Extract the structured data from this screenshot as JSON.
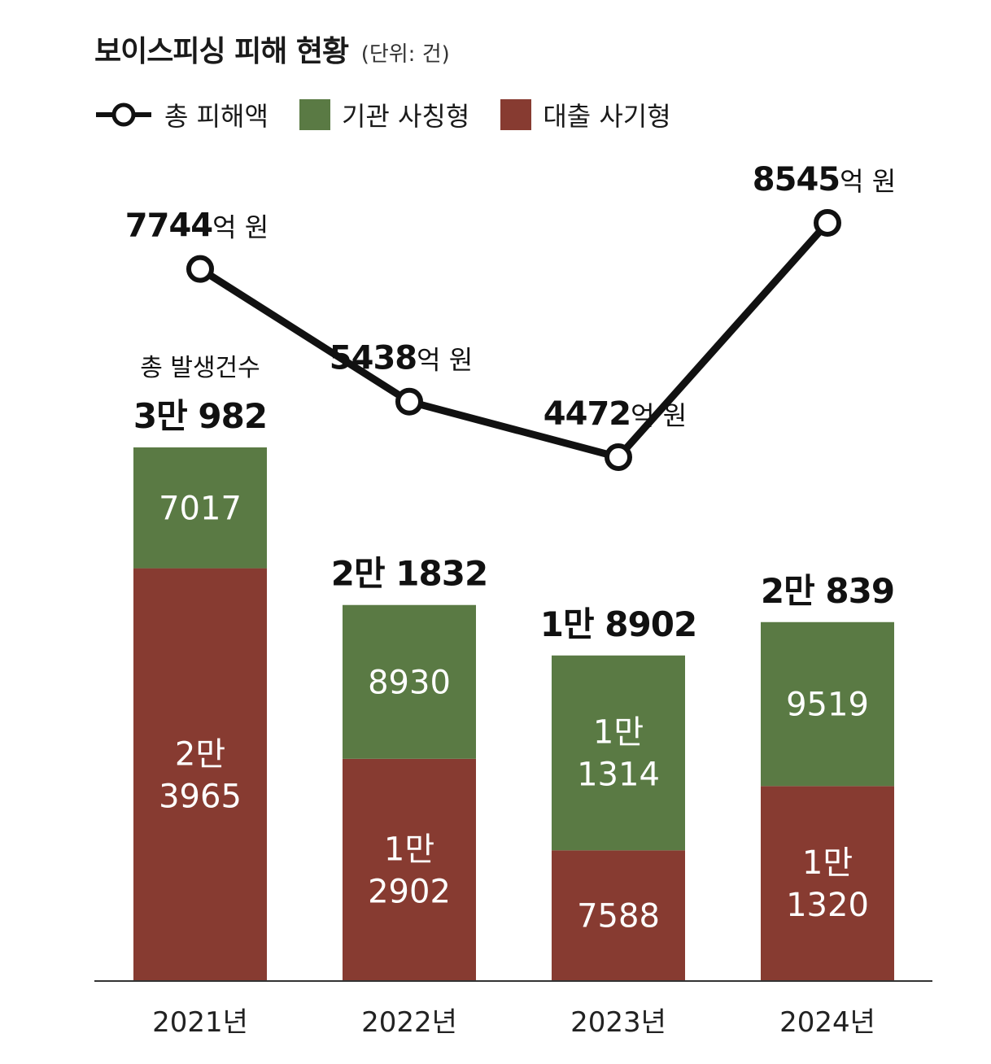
{
  "chart_data": {
    "type": "bar",
    "title": "보이스피싱 피해 현황",
    "unit_label": "(단위: 건)",
    "categories": [
      "2021년",
      "2022년",
      "2023년",
      "2024년"
    ],
    "series": [
      {
        "name": "대출 사기형",
        "values": [
          23965,
          12902,
          7588,
          11320
        ],
        "labels": [
          [
            "2만",
            "3965"
          ],
          [
            "1만",
            "2902"
          ],
          [
            "7588"
          ],
          [
            "1만",
            "1320"
          ]
        ],
        "color": "#873b31"
      },
      {
        "name": "기관 사칭형",
        "values": [
          7017,
          8930,
          11314,
          9519
        ],
        "labels": [
          [
            "7017"
          ],
          [
            "8930"
          ],
          [
            "1만",
            "1314"
          ],
          [
            "9519"
          ]
        ],
        "color": "#5a7a44"
      }
    ],
    "totals": {
      "values": [
        30982,
        21832,
        18902,
        20839
      ],
      "labels": [
        "3만 982",
        "2만 1832",
        "1만 8902",
        "2만 839"
      ],
      "caption": "총 발생건수"
    },
    "line": {
      "name": "총 피해액",
      "values": [
        7744,
        5438,
        4472,
        8545
      ],
      "labels": [
        "7744",
        "5438",
        "4472",
        "8545"
      ],
      "suffix": "억 원",
      "color": "#111111"
    },
    "ylim": [
      0,
      36000
    ]
  }
}
